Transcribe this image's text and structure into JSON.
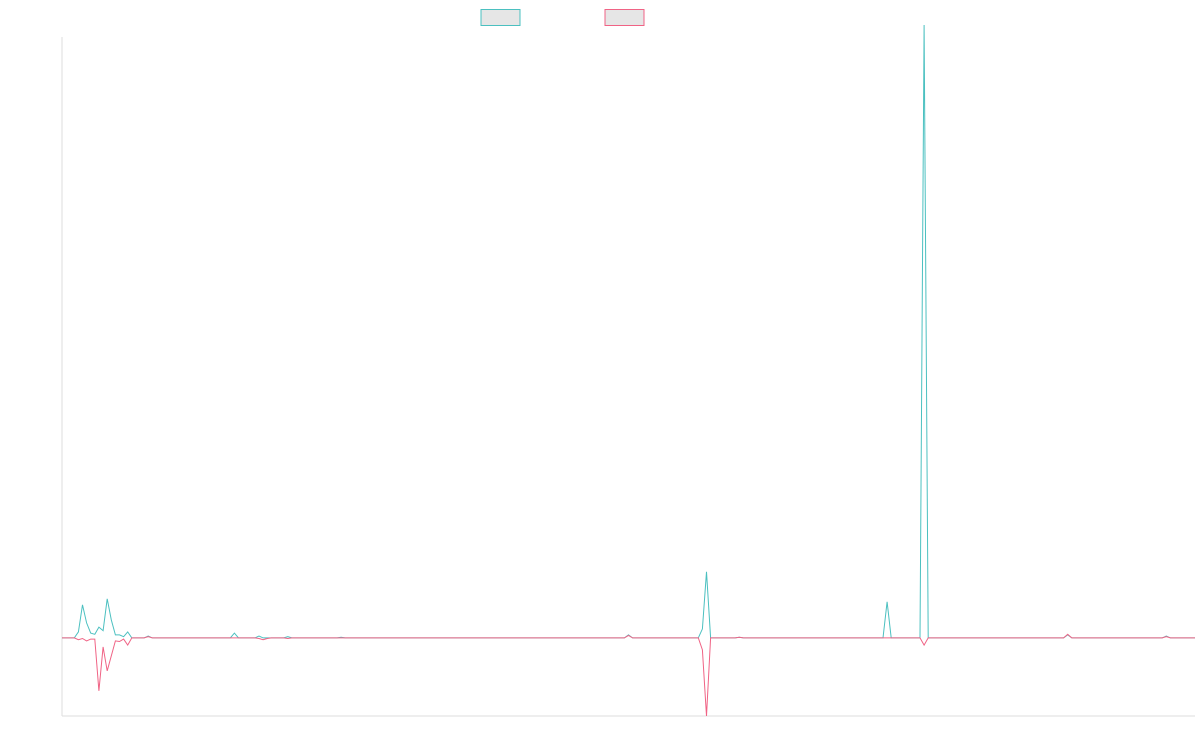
{
  "chart_data": {
    "type": "line",
    "title": "",
    "xlabel": "",
    "ylabel": "",
    "grid": false,
    "legend_position": "top-center",
    "x_range": [
      0,
      276
    ],
    "ylim": [
      -1.3,
      10
    ],
    "series": [
      {
        "color": "#4bc0c0",
        "legend_fill": "#e6e6e6",
        "points": [
          [
            0,
            0
          ],
          [
            3,
            0
          ],
          [
            4,
            0.1
          ],
          [
            5,
            0.55
          ],
          [
            6,
            0.25
          ],
          [
            7,
            0.08
          ],
          [
            8,
            0.06
          ],
          [
            9,
            0.18
          ],
          [
            10,
            0.12
          ],
          [
            11,
            0.65
          ],
          [
            12,
            0.3
          ],
          [
            13,
            0.05
          ],
          [
            14,
            0.05
          ],
          [
            15,
            0.02
          ],
          [
            16,
            0.1
          ],
          [
            17,
            0
          ],
          [
            20,
            0
          ],
          [
            21,
            0.03
          ],
          [
            22,
            0
          ],
          [
            41,
            0
          ],
          [
            42,
            0.08
          ],
          [
            43,
            0
          ],
          [
            47,
            0
          ],
          [
            48,
            0.03
          ],
          [
            49,
            0
          ],
          [
            54,
            0
          ],
          [
            55,
            0.02
          ],
          [
            56,
            0
          ],
          [
            67,
            0
          ],
          [
            68,
            0.01
          ],
          [
            69,
            0
          ],
          [
            137,
            0
          ],
          [
            138,
            0.05
          ],
          [
            139,
            0
          ],
          [
            155,
            0
          ],
          [
            156,
            0.15
          ],
          [
            157,
            1.1
          ],
          [
            158,
            0
          ],
          [
            164,
            0
          ],
          [
            165,
            0.01
          ],
          [
            166,
            0
          ],
          [
            200,
            0
          ],
          [
            201,
            0.6
          ],
          [
            202,
            0
          ],
          [
            209,
            0
          ],
          [
            210,
            10.2
          ],
          [
            211,
            0
          ],
          [
            244,
            0
          ],
          [
            245,
            0.05
          ],
          [
            246,
            0
          ],
          [
            268,
            0
          ],
          [
            269,
            0.03
          ],
          [
            270,
            0
          ],
          [
            276,
            0
          ]
        ]
      },
      {
        "color": "#f06385",
        "legend_fill": "#e6e6e6",
        "points": [
          [
            0,
            0
          ],
          [
            3,
            0
          ],
          [
            4,
            -0.03
          ],
          [
            5,
            -0.01
          ],
          [
            6,
            -0.05
          ],
          [
            7,
            -0.02
          ],
          [
            8,
            -0.02
          ],
          [
            9,
            -0.88
          ],
          [
            10,
            -0.15
          ],
          [
            11,
            -0.55
          ],
          [
            12,
            -0.3
          ],
          [
            13,
            -0.05
          ],
          [
            14,
            -0.06
          ],
          [
            15,
            -0.02
          ],
          [
            16,
            -0.12
          ],
          [
            17,
            0
          ],
          [
            20,
            0
          ],
          [
            21,
            0.02
          ],
          [
            22,
            0
          ],
          [
            47,
            0
          ],
          [
            48,
            -0.01
          ],
          [
            49,
            -0.03
          ],
          [
            50,
            -0.01
          ],
          [
            51,
            0
          ],
          [
            54,
            0
          ],
          [
            55,
            -0.01
          ],
          [
            56,
            0
          ],
          [
            137,
            0
          ],
          [
            138,
            0.04
          ],
          [
            139,
            0
          ],
          [
            155,
            0
          ],
          [
            156,
            -0.2
          ],
          [
            157,
            -1.3
          ],
          [
            158,
            0
          ],
          [
            164,
            0
          ],
          [
            165,
            0.01
          ],
          [
            166,
            0
          ],
          [
            209,
            0
          ],
          [
            210,
            -0.12
          ],
          [
            211,
            0
          ],
          [
            244,
            0
          ],
          [
            245,
            0.06
          ],
          [
            246,
            0
          ],
          [
            268,
            0
          ],
          [
            269,
            0.02
          ],
          [
            270,
            0
          ],
          [
            276,
            0
          ]
        ]
      }
    ]
  }
}
